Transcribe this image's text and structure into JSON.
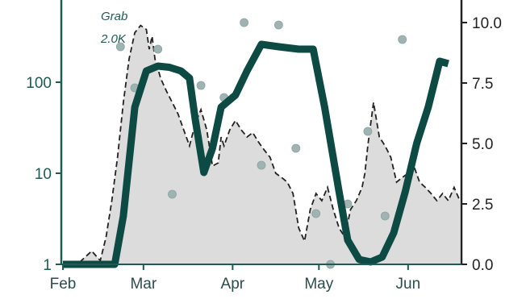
{
  "chart_data": {
    "type": "line",
    "title": "",
    "xlabel": "",
    "ylabel_left": "",
    "ylabel_right": "",
    "x_ticks": [
      "Feb",
      "Mar",
      "Apr",
      "May",
      "Jun"
    ],
    "x_range_days": [
      0,
      138
    ],
    "x_tick_days": [
      0,
      28,
      59,
      89,
      120
    ],
    "y_left": {
      "scale": "log",
      "range": [
        1,
        1000
      ],
      "ticks": [
        "1",
        "10",
        "100"
      ],
      "tick_values": [
        1,
        10,
        100
      ]
    },
    "y_right": {
      "scale": "linear",
      "range": [
        0,
        11
      ],
      "ticks": [
        "0.0",
        "2.5",
        "5.0",
        "7.5",
        "10.0"
      ],
      "tick_values": [
        0,
        2.5,
        5,
        7.5,
        10
      ]
    },
    "grid": false,
    "annotation": {
      "line1": "Grab",
      "line2": "2.0K"
    },
    "colors": {
      "thick_line": "#0d4a44",
      "axis_left": "#1f5a55",
      "axis_right": "#222222",
      "area_fill": "#dcdcdc",
      "dashed_line": "#222222",
      "points": "#9fb4b2"
    },
    "series": [
      {
        "role": "area_and_dashed_line",
        "axis": "left",
        "x": [
          0,
          5,
          10,
          13,
          15,
          17,
          19,
          21,
          23,
          25,
          27,
          29,
          30,
          31,
          32,
          34,
          36,
          38,
          40,
          42,
          44,
          46,
          48,
          50,
          52,
          54,
          55,
          56,
          58,
          60,
          62,
          64,
          66,
          68,
          70,
          72,
          74,
          76,
          78,
          80,
          82,
          84,
          86,
          88,
          90,
          92,
          94,
          96,
          98,
          100,
          102,
          104,
          105,
          106,
          107,
          108,
          110,
          112,
          114,
          116,
          118,
          120,
          122,
          124,
          126,
          128,
          130,
          132,
          134,
          136,
          138
        ],
        "y": [
          1,
          1,
          1.4,
          1.1,
          2,
          5,
          15,
          60,
          180,
          350,
          420,
          380,
          230,
          320,
          180,
          110,
          80,
          60,
          45,
          30,
          20,
          35,
          50,
          30,
          12,
          13,
          25,
          20,
          30,
          38,
          30,
          25,
          28,
          22,
          18,
          15,
          10,
          9,
          8,
          6,
          2.5,
          1.8,
          4,
          6,
          5,
          7,
          4,
          2.5,
          2,
          4,
          5,
          7,
          10,
          20,
          35,
          60,
          25,
          20,
          15,
          8,
          9,
          10,
          12,
          8,
          7,
          6,
          5,
          6,
          5,
          7,
          5
        ]
      },
      {
        "role": "thick_line",
        "axis": "right",
        "x": [
          0,
          12,
          18,
          21,
          25,
          29,
          33,
          37,
          41,
          44,
          46,
          49,
          52,
          55,
          60,
          64,
          69,
          75,
          82,
          87,
          91,
          96,
          99,
          103,
          107,
          111,
          115,
          119,
          123,
          127,
          131,
          134
        ],
        "y": [
          0,
          0,
          0,
          2,
          6.5,
          8.0,
          8.2,
          8.15,
          8.0,
          7.7,
          6,
          3.8,
          4.8,
          6.5,
          7,
          8.0,
          9.1,
          9.0,
          8.9,
          8.9,
          6.5,
          3,
          1.0,
          0.2,
          0.1,
          0.3,
          1.3,
          3,
          5,
          6.5,
          8.4,
          8.3
        ]
      },
      {
        "role": "points",
        "axis": "right",
        "x": [
          20,
          25,
          33,
          38,
          48,
          56,
          63,
          69,
          75,
          81,
          88,
          93,
          99,
          106,
          112,
          118
        ],
        "y": [
          9.0,
          7.3,
          8.9,
          2.9,
          7.4,
          6.9,
          10.0,
          4.1,
          9.9,
          4.8,
          2.1,
          0.0,
          2.5,
          5.5,
          2.0,
          9.3
        ]
      }
    ]
  }
}
